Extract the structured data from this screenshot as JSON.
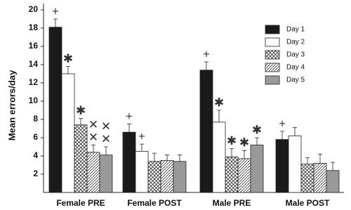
{
  "chart_data": {
    "type": "bar",
    "y_label": "Mean errors/day",
    "categories": [
      "Female PRE",
      "Female POST",
      "Male PRE",
      "Male POST"
    ],
    "series": [
      {
        "name": "Day 1",
        "color": "#1a1a1a",
        "pattern": "solid",
        "values": [
          18.1,
          6.6,
          13.4,
          5.8
        ],
        "errors": [
          0.9,
          0.9,
          0.9,
          0.9
        ],
        "markers": [
          "+",
          "+",
          "+",
          "+"
        ]
      },
      {
        "name": "Day 2",
        "color": "#ffffff",
        "pattern": "solid",
        "values": [
          13.0,
          4.5,
          7.7,
          6.2
        ],
        "errors": [
          0.8,
          0.8,
          1.3,
          0.9
        ],
        "markers": [
          "✱",
          "+",
          "✱",
          null
        ]
      },
      {
        "name": "Day 3",
        "color": "#ffffff",
        "pattern": "crosshatch",
        "values": [
          7.4,
          3.4,
          3.9,
          3.1
        ],
        "errors": [
          0.7,
          0.9,
          0.9,
          0.7
        ],
        "markers": [
          "✱",
          null,
          "✱",
          null
        ]
      },
      {
        "name": "Day 4",
        "color": "#ffffff",
        "pattern": "diagonal",
        "values": [
          4.4,
          3.5,
          3.7,
          3.2
        ],
        "errors": [
          0.8,
          0.6,
          0.9,
          1.0
        ],
        "markers": [
          "✕✕",
          null,
          "✱",
          null
        ]
      },
      {
        "name": "Day 5",
        "color": "#999999",
        "pattern": "solid",
        "values": [
          4.1,
          3.4,
          5.2,
          2.4
        ],
        "errors": [
          0.9,
          0.7,
          0.8,
          0.9
        ],
        "markers": [
          "✕✕",
          null,
          "✱",
          null
        ]
      }
    ],
    "ylim": [
      0,
      20
    ],
    "yticks": [
      2,
      4,
      6,
      8,
      10,
      12,
      14,
      16,
      18,
      20
    ],
    "legend": "top-right"
  }
}
